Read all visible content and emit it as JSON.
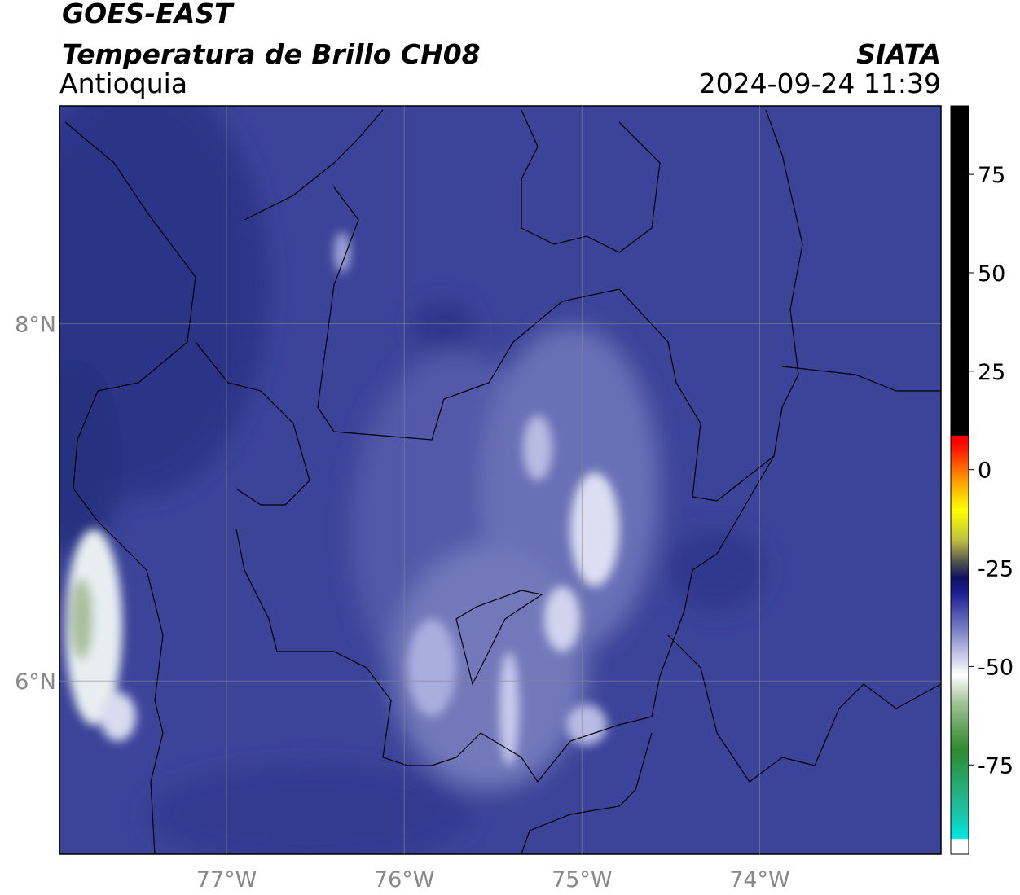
{
  "header": {
    "title": "GOES-EAST",
    "subtitle": "Temperatura de Brillo CH08",
    "region": "Antioquia",
    "source": "SIATA",
    "timestamp": "2024-09-24 11:39"
  },
  "map": {
    "xlim": [
      -77.94,
      -72.98
    ],
    "ylim": [
      5.03,
      9.22
    ],
    "xticks": [
      {
        "value": -77,
        "label": "77°W"
      },
      {
        "value": -76,
        "label": "76°W"
      },
      {
        "value": -75,
        "label": "75°W"
      },
      {
        "value": -74,
        "label": "74°W"
      }
    ],
    "yticks": [
      {
        "value": 8,
        "label": "8°N"
      },
      {
        "value": 6,
        "label": "6°N"
      }
    ]
  },
  "colorbar": {
    "lim": [
      -97.7,
      92.4
    ],
    "ticks": [
      75,
      50,
      25,
      0,
      -25,
      -50,
      -75
    ]
  }
}
